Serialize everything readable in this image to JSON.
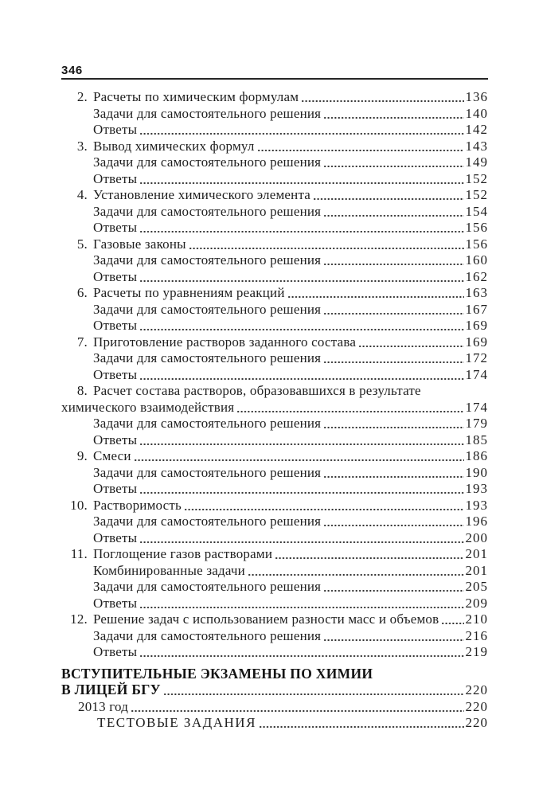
{
  "page_header": {
    "page_number": "346"
  },
  "colors": {
    "ink": "#1f1f1f",
    "rule": "#262626",
    "background": "#ffffff"
  },
  "toc": {
    "entries": [
      {
        "type": "item",
        "num": "2.",
        "label": "Расчеты по химическим формулам",
        "page": "136"
      },
      {
        "type": "sub",
        "label": "Задачи для самостоятельного решения",
        "page": "140"
      },
      {
        "type": "sub",
        "label": "Ответы",
        "page": "142"
      },
      {
        "type": "item",
        "num": "3.",
        "label": "Вывод химических формул",
        "page": "143"
      },
      {
        "type": "sub",
        "label": "Задачи для самостоятельного решения",
        "page": "149"
      },
      {
        "type": "sub",
        "label": "Ответы",
        "page": "152"
      },
      {
        "type": "item",
        "num": "4.",
        "label": "Установление химического элемента",
        "page": "152"
      },
      {
        "type": "sub",
        "label": "Задачи для самостоятельного решения",
        "page": "154"
      },
      {
        "type": "sub",
        "label": "Ответы",
        "page": "156"
      },
      {
        "type": "item",
        "num": "5.",
        "label": "Газовые законы",
        "page": "156"
      },
      {
        "type": "sub",
        "label": "Задачи для самостоятельного решения",
        "page": "160"
      },
      {
        "type": "sub",
        "label": "Ответы",
        "page": "162"
      },
      {
        "type": "item",
        "num": "6.",
        "label": "Расчеты по уравнениям реакций",
        "page": "163"
      },
      {
        "type": "sub",
        "label": "Задачи для самостоятельного решения",
        "page": "167"
      },
      {
        "type": "sub",
        "label": "Ответы",
        "page": "169"
      },
      {
        "type": "item",
        "num": "7.",
        "label": "Приготовление растворов заданного состава",
        "page": "169"
      },
      {
        "type": "sub",
        "label": "Задачи для самостоятельного решения",
        "page": "172"
      },
      {
        "type": "sub",
        "label": "Ответы",
        "page": "174"
      },
      {
        "type": "item-nopage",
        "num": "8.",
        "label": "Расчет состава растворов, образовавшихся в результате"
      },
      {
        "type": "continuation",
        "label": "химического взаимодействия",
        "page": "174"
      },
      {
        "type": "sub",
        "label": "Задачи для самостоятельного решения",
        "page": "179"
      },
      {
        "type": "sub",
        "label": "Ответы",
        "page": "185"
      },
      {
        "type": "item",
        "num": "9.",
        "label": "Смеси",
        "page": "186"
      },
      {
        "type": "sub",
        "label": "Задачи для самостоятельного решения",
        "page": "190"
      },
      {
        "type": "sub",
        "label": "Ответы",
        "page": "193"
      },
      {
        "type": "item",
        "num": "10.",
        "label": "Растворимость",
        "page": "193"
      },
      {
        "type": "sub",
        "label": "Задачи для самостоятельного решения",
        "page": "196"
      },
      {
        "type": "sub",
        "label": "Ответы",
        "page": "200"
      },
      {
        "type": "item",
        "num": "11.",
        "label": "Поглощение газов растворами",
        "page": "201"
      },
      {
        "type": "sub",
        "label": "Комбинированные задачи",
        "page": "201"
      },
      {
        "type": "sub",
        "label": "Задачи для самостоятельного решения",
        "page": "205"
      },
      {
        "type": "sub",
        "label": "Ответы",
        "page": "209"
      },
      {
        "type": "item",
        "num": "12.",
        "label": "Решение задач с использованием разности масс и объемов",
        "page": "210"
      },
      {
        "type": "sub",
        "label": "Задачи для самостоятельного решения",
        "page": "216"
      },
      {
        "type": "sub",
        "label": "Ответы",
        "page": "219"
      },
      {
        "type": "section-heading",
        "label": "ВСТУПИТЕЛЬНЫЕ ЭКЗАМЕНЫ ПО ХИМИИ"
      },
      {
        "type": "section-heading-cont",
        "label": "В ЛИЦЕЙ БГУ",
        "page": "220"
      },
      {
        "type": "year",
        "label": "2013 год",
        "page": "220"
      },
      {
        "type": "subsection",
        "label": "ТЕСТОВЫЕ ЗАДАНИЯ",
        "page": "220"
      }
    ]
  }
}
